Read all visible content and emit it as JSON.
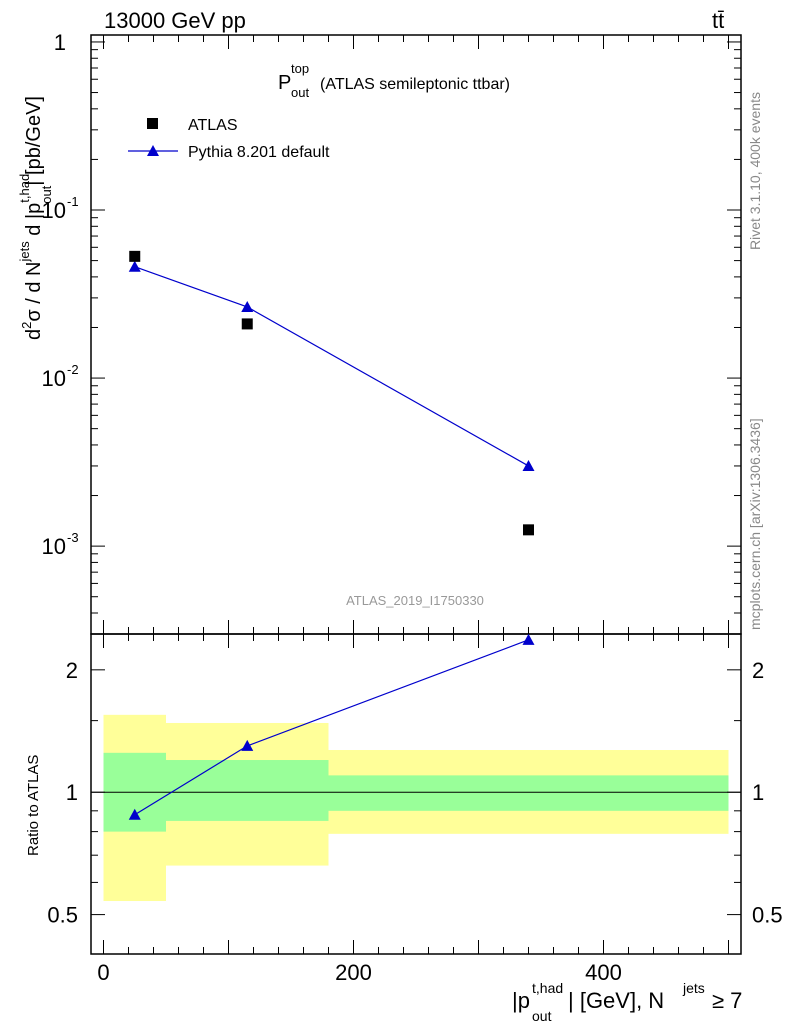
{
  "header": {
    "left": "13000 GeV pp",
    "right": "tt̄"
  },
  "title": {
    "main": "P",
    "sup": "top",
    "sub": "out",
    "rest": " (ATLAS semileptonic ttbar)"
  },
  "side_labels": {
    "rivet": "Rivet 3.1.10,  400k events",
    "mcplots": "mcplots.cern.ch [arXiv:1306.3436]"
  },
  "watermark": "ATLAS_2019_I1750330",
  "legend": {
    "data_label": "ATLAS",
    "mc_label": "Pythia 8.201 default",
    "placement": "top-left"
  },
  "colors": {
    "data": "#000000",
    "mc": "#0000cc",
    "band_inner": "#99ff99",
    "band_outer": "#ffff99"
  },
  "chart_data": [
    {
      "type": "scatter",
      "panel": "main",
      "yscale": "log",
      "ylim": [
        0.0003,
        1.1
      ],
      "xlim": [
        -10,
        510
      ],
      "ytick_labels": [
        "1",
        "10",
        "10",
        "10"
      ],
      "ytick_exponents": [
        "",
        "-1",
        "-2",
        "-3"
      ],
      "ylabel": "d²σ / d Nʲᵉᵗˢ d |pᵗʷᵃᵈ out| [pb/GeV]",
      "series": [
        {
          "name": "ATLAS",
          "marker": "square",
          "x": [
            25,
            115,
            340
          ],
          "y": [
            0.053,
            0.021,
            0.00125
          ]
        },
        {
          "name": "Pythia 8.201 default",
          "marker": "triangle",
          "x": [
            25,
            115,
            340
          ],
          "y": [
            0.046,
            0.0265,
            0.003
          ]
        }
      ]
    },
    {
      "type": "line",
      "panel": "ratio",
      "ylabel": "Ratio to ATLAS",
      "xlabel": "|p^{t,had}_{out}| [GeV], N^{jets} ≥ 7",
      "ylim": [
        0.4,
        2.45
      ],
      "xlim": [
        -10,
        510
      ],
      "ytick_labels": [
        "0.5",
        "1",
        "2"
      ],
      "xtick_labels": [
        "0",
        "200",
        "400"
      ],
      "bins": [
        {
          "x_low": 0,
          "x_high": 50,
          "inner": [
            0.8,
            1.25
          ],
          "outer": [
            0.54,
            1.55
          ]
        },
        {
          "x_low": 50,
          "x_high": 180,
          "inner": [
            0.85,
            1.2
          ],
          "outer": [
            0.66,
            1.48
          ]
        },
        {
          "x_low": 180,
          "x_high": 500,
          "inner": [
            0.9,
            1.1
          ],
          "outer": [
            0.79,
            1.27
          ]
        }
      ],
      "series": [
        {
          "name": "Pythia 8.201 default",
          "x": [
            25,
            115,
            340
          ],
          "y": [
            0.88,
            1.3,
            2.37
          ]
        }
      ]
    }
  ],
  "axis_text": {
    "x_label_main": "|p",
    "x_label_sup": "t,had",
    "x_label_sub": "out",
    "x_label_rest": "| [GeV], N",
    "x_label_sup2": "jets",
    "x_label_tail": " ≥ 7",
    "y_label_main_parts": [
      "d",
      "2",
      "σ  /  d N",
      "jets",
      " d |p",
      "t,had",
      "out",
      "| [pb/GeV]"
    ],
    "y_label_ratio": "Ratio to ATLAS"
  }
}
